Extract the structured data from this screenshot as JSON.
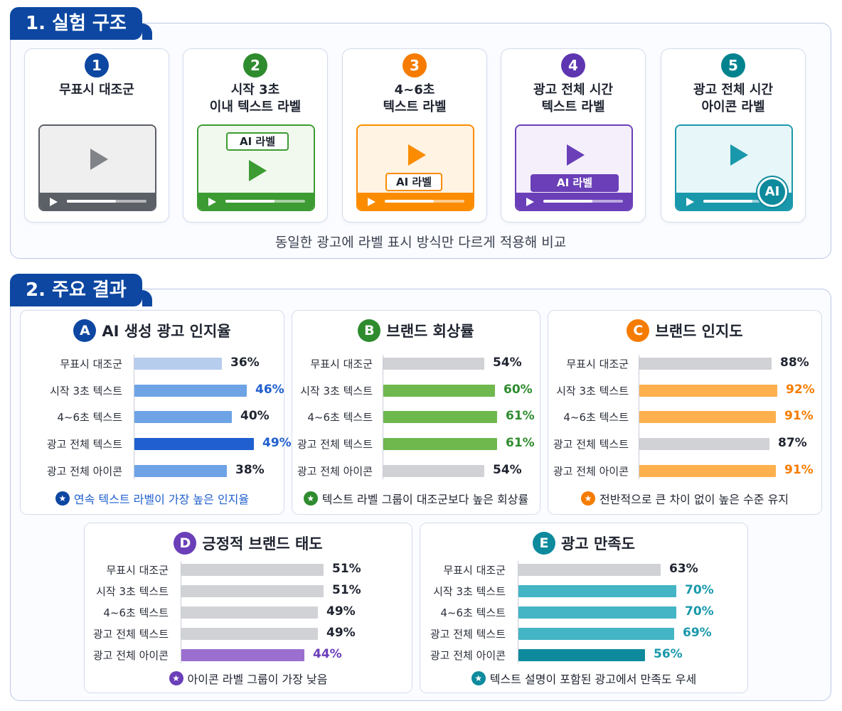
{
  "section1": {
    "title": "1. 실험 구조",
    "caption": "동일한 광고에 라벨 표시 방식만 다르게 적용해 비교",
    "cards": [
      {
        "num": "1",
        "title": "무표시 대조군",
        "color": "#0d47a1",
        "accent": "#5b5f66",
        "tint": "#efefef",
        "label": "",
        "label_style": "none"
      },
      {
        "num": "2",
        "title": "시작 3초\n이내 텍스트 라벨",
        "color": "#2e8b2e",
        "accent": "#3c9b32",
        "tint": "#f1f9ee",
        "label": "AI 라벨",
        "label_style": "top-outline"
      },
      {
        "num": "3",
        "title": "4~6초\n텍스트 라벨",
        "color": "#f57c00",
        "accent": "#fb8c00",
        "tint": "#fff3e3",
        "label": "AI 라벨",
        "label_style": "bottom-outline"
      },
      {
        "num": "4",
        "title": "광고 전체 시간\n텍스트 라벨",
        "color": "#5e35b1",
        "accent": "#6a3fb8",
        "tint": "#f4effb",
        "label": "AI 라벨",
        "label_style": "bottom-filled"
      },
      {
        "num": "5",
        "title": "광고 전체 시간\n아이콘 라벨",
        "color": "#00838f",
        "accent": "#1a98ab",
        "tint": "#e7f6f8",
        "label": "AI",
        "label_style": "icon"
      }
    ]
  },
  "section2": {
    "title": "2. 주요 결과"
  },
  "chart_data": [
    {
      "type": "bar",
      "letter": "A",
      "title": "AI 생성 광고 인지율",
      "categories": [
        "무표시 대조군",
        "시작 3초 텍스트",
        "4~6초 텍스트",
        "광고 전체 텍스트",
        "광고 전체 아이콘"
      ],
      "values": [
        36,
        46,
        40,
        49,
        38
      ],
      "value_labels": [
        "36%",
        "46%",
        "40%",
        "49%",
        "38%"
      ],
      "bar_colors": [
        "#b7cdee",
        "#6ea3e6",
        "#6ea3e6",
        "#1f5fcf",
        "#6ea3e6"
      ],
      "label_colors": [
        "#1f2430",
        "#1f5fcf",
        "#1f2430",
        "#1f5fcf",
        "#1f2430"
      ],
      "note": "연속 텍스트 라벨이 가장 높은 인지율",
      "theme": "#0d47a1",
      "note_color": "#1f5fcf"
    },
    {
      "type": "bar",
      "letter": "B",
      "title": "브랜드 회상률",
      "categories": [
        "무표시 대조군",
        "시작 3초 텍스트",
        "4~6초 텍스트",
        "광고 전체 텍스트",
        "광고 전체 아이콘"
      ],
      "values": [
        54,
        60,
        61,
        61,
        54
      ],
      "value_labels": [
        "54%",
        "60%",
        "61%",
        "61%",
        "54%"
      ],
      "bar_colors": [
        "#d0d2d6",
        "#6fb84e",
        "#6fb84e",
        "#6fb84e",
        "#d0d2d6"
      ],
      "label_colors": [
        "#1f2430",
        "#2e8b2e",
        "#2e8b2e",
        "#2e8b2e",
        "#1f2430"
      ],
      "note": "텍스트 라벨 그룹이 대조군보다 높은 회상률",
      "theme": "#2e8b2e",
      "note_color": "#1f2430"
    },
    {
      "type": "bar",
      "letter": "C",
      "title": "브랜드 인지도",
      "categories": [
        "무표시 대조군",
        "시작 3초 텍스트",
        "4~6초 텍스트",
        "광고 전체 텍스트",
        "광고 전체 아이콘"
      ],
      "values": [
        88,
        92,
        91,
        87,
        91
      ],
      "value_labels": [
        "88%",
        "92%",
        "91%",
        "87%",
        "91%"
      ],
      "bar_colors": [
        "#d0d2d6",
        "#fdb04d",
        "#fdb04d",
        "#d0d2d6",
        "#fdb04d"
      ],
      "label_colors": [
        "#1f2430",
        "#f57c00",
        "#f57c00",
        "#1f2430",
        "#f57c00"
      ],
      "note": "전반적으로 큰 차이 없이 높은 수준 유지",
      "theme": "#f57c00",
      "note_color": "#1f2430"
    },
    {
      "type": "bar",
      "letter": "D",
      "title": "긍정적 브랜드 태도",
      "categories": [
        "무표시 대조군",
        "시작 3초 텍스트",
        "4~6초 텍스트",
        "광고 전체 텍스트",
        "광고 전체 아이콘"
      ],
      "values": [
        51,
        51,
        49,
        49,
        44
      ],
      "value_labels": [
        "51%",
        "51%",
        "49%",
        "49%",
        "44%"
      ],
      "bar_colors": [
        "#d0d2d6",
        "#d0d2d6",
        "#d0d2d6",
        "#d0d2d6",
        "#9b6fd0"
      ],
      "label_colors": [
        "#1f2430",
        "#1f2430",
        "#1f2430",
        "#1f2430",
        "#6a3fb8"
      ],
      "note": "아이콘 라벨 그룹이 가장 낮음",
      "theme": "#6a3fb8",
      "note_color": "#1f2430"
    },
    {
      "type": "bar",
      "letter": "E",
      "title": "광고 만족도",
      "categories": [
        "무표시 대조군",
        "시작 3초 텍스트",
        "4~6초 텍스트",
        "광고 전체 텍스트",
        "광고 전체 아이콘"
      ],
      "values": [
        63,
        70,
        70,
        69,
        56
      ],
      "value_labels": [
        "63%",
        "70%",
        "70%",
        "69%",
        "56%"
      ],
      "bar_colors": [
        "#d0d2d6",
        "#43b5c4",
        "#43b5c4",
        "#43b5c4",
        "#0e8a9d"
      ],
      "label_colors": [
        "#1f2430",
        "#1a98ab",
        "#1a98ab",
        "#1a98ab",
        "#1a98ab"
      ],
      "note": "텍스트 설명이 포함된 광고에서 만족도 우세",
      "theme": "#0e8a9d",
      "note_color": "#1f2430"
    }
  ]
}
